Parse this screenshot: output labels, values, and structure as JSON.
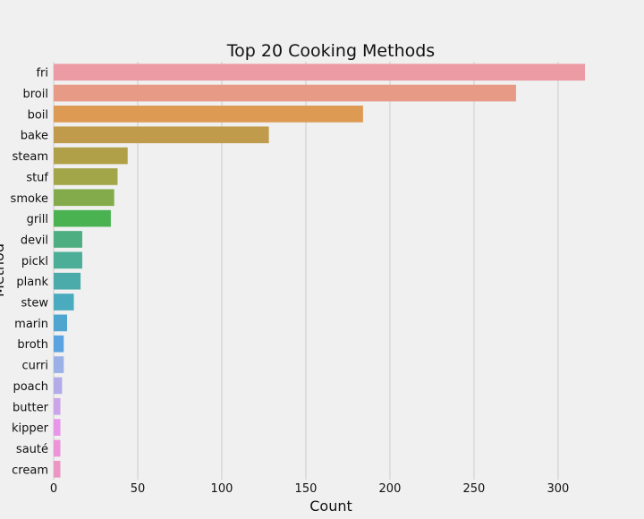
{
  "chart_data": {
    "type": "bar",
    "orientation": "horizontal",
    "title": "Top 20 Cooking Methods",
    "xlabel": "Count",
    "ylabel": "Method",
    "xlim": [
      0,
      340
    ],
    "xticks": [
      0,
      50,
      100,
      150,
      200,
      250,
      300
    ],
    "grid": "vertical",
    "categories": [
      "fri",
      "broil",
      "boil",
      "bake",
      "steam",
      "stuf",
      "smoke",
      "grill",
      "devil",
      "pickl",
      "plank",
      "stew",
      "marin",
      "broth",
      "curri",
      "poach",
      "butter",
      "kipper",
      "sauté",
      "cream"
    ],
    "values": [
      316,
      275,
      184,
      128,
      44,
      38,
      36,
      34,
      17,
      17,
      16,
      12,
      8,
      6,
      6,
      5,
      4,
      4,
      4,
      4
    ],
    "colors": [
      "#ec9aa3",
      "#e79b87",
      "#dd9a53",
      "#c09b4b",
      "#b0a048",
      "#a2a548",
      "#84ab4b",
      "#4ab251",
      "#4cae81",
      "#4cae97",
      "#4babaa",
      "#4aabbe",
      "#4ea5cf",
      "#5ba3e0",
      "#9ab0e6",
      "#b3aae8",
      "#cba4ea",
      "#e796e9",
      "#ed93da",
      "#ec96c4"
    ]
  }
}
